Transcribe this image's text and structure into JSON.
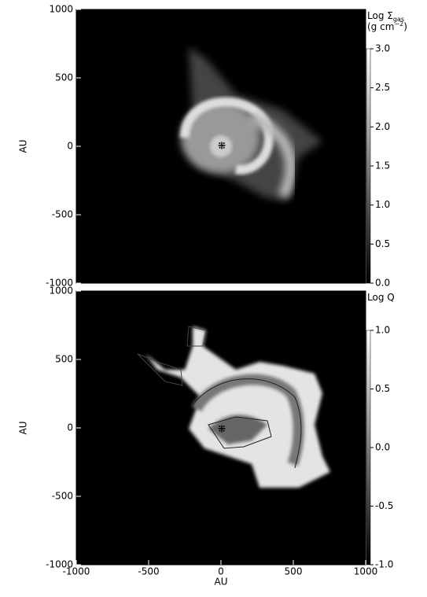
{
  "chart_data": [
    {
      "type": "image",
      "ylabel": "AU",
      "xlim": [
        -1000,
        1000
      ],
      "ylim": [
        -1000,
        1000
      ],
      "yticks": [
        1000,
        500,
        0,
        -500,
        -1000
      ],
      "colorbar": {
        "label": "Log Σ",
        "label_sub": "gas",
        "unit": "(g cm",
        "unit_sup": "−2",
        "unit_close": ")",
        "lim": [
          0,
          3
        ],
        "ticks": [
          {
            "value": 3,
            "label": "3.0"
          },
          2.5,
          {
            "value": 2,
            "label": "2.0"
          },
          1.5,
          {
            "value": 1,
            "label": "1.0"
          },
          0.5,
          {
            "value": 0,
            "label": "0.0"
          }
        ]
      }
    },
    {
      "type": "image",
      "ylabel": "AU",
      "xlabel": "AU",
      "xlim": [
        -1000,
        1000
      ],
      "ylim": [
        -1000,
        1000
      ],
      "xticks": [
        -1000,
        -500,
        0,
        500,
        1000
      ],
      "yticks": [
        1000,
        500,
        0,
        -500,
        -1000
      ],
      "colorbar": {
        "label": "Log Q",
        "lim": [
          -1,
          1
        ],
        "ticks": [
          {
            "value": 1,
            "label": "1.0"
          },
          0.5,
          {
            "value": 0,
            "label": "0.0"
          },
          -0.5,
          {
            "value": -1,
            "label": "-1.0"
          }
        ]
      }
    }
  ]
}
